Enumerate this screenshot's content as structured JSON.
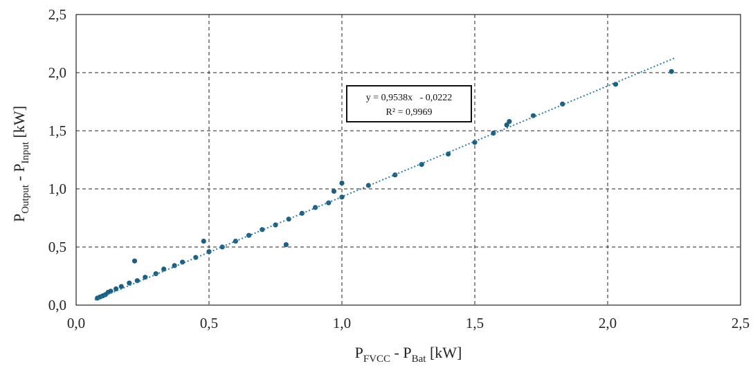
{
  "chart_data": {
    "type": "scatter",
    "xlabel": {
      "main": "P",
      "sub1": "FVCC",
      "mid": " - P",
      "sub2": "Bat",
      "unit": " [kW]"
    },
    "ylabel": {
      "main": "P",
      "sub1": "Output",
      "mid": " - P",
      "sub2": "Input",
      "unit": " [kW]"
    },
    "xlim": [
      0.0,
      2.5
    ],
    "ylim": [
      0.0,
      2.5
    ],
    "x_ticks": [
      "0,0",
      "0,5",
      "1,0",
      "1,5",
      "2,0",
      "2,5"
    ],
    "y_ticks": [
      "0,0",
      "0,5",
      "1,0",
      "1,5",
      "2,0",
      "2,5"
    ],
    "grid": true,
    "trendline": {
      "slope": 0.9538,
      "intercept": -0.0222,
      "x_range": [
        0.07,
        2.25
      ],
      "equation": "y = 0,9538x   - 0,0222",
      "r2": "R² = 0,9969"
    },
    "series": [
      {
        "color": "#1e5f80",
        "points_sample": [
          [
            0.08,
            0.06
          ],
          [
            0.09,
            0.07
          ],
          [
            0.1,
            0.08
          ],
          [
            0.11,
            0.09
          ],
          [
            0.12,
            0.11
          ],
          [
            0.13,
            0.12
          ],
          [
            0.15,
            0.14
          ],
          [
            0.17,
            0.16
          ],
          [
            0.2,
            0.19
          ],
          [
            0.23,
            0.21
          ],
          [
            0.26,
            0.24
          ],
          [
            0.3,
            0.27
          ],
          [
            0.33,
            0.31
          ],
          [
            0.37,
            0.34
          ],
          [
            0.4,
            0.37
          ],
          [
            0.45,
            0.41
          ],
          [
            0.5,
            0.46
          ],
          [
            0.55,
            0.5
          ],
          [
            0.6,
            0.55
          ],
          [
            0.65,
            0.6
          ],
          [
            0.7,
            0.65
          ],
          [
            0.75,
            0.69
          ],
          [
            0.8,
            0.74
          ],
          [
            0.85,
            0.79
          ],
          [
            0.9,
            0.84
          ],
          [
            0.95,
            0.88
          ],
          [
            1.0,
            0.93
          ],
          [
            1.1,
            1.03
          ],
          [
            1.2,
            1.12
          ],
          [
            1.3,
            1.21
          ],
          [
            1.4,
            1.3
          ],
          [
            1.5,
            1.4
          ],
          [
            1.57,
            1.48
          ],
          [
            1.62,
            1.55
          ],
          [
            1.63,
            1.58
          ],
          [
            1.72,
            1.63
          ],
          [
            1.83,
            1.73
          ],
          [
            2.03,
            1.9
          ],
          [
            2.24,
            2.01
          ],
          [
            0.22,
            0.38
          ],
          [
            0.79,
            0.52
          ],
          [
            1.0,
            1.05
          ],
          [
            0.48,
            0.55
          ],
          [
            0.97,
            0.98
          ]
        ]
      }
    ]
  }
}
